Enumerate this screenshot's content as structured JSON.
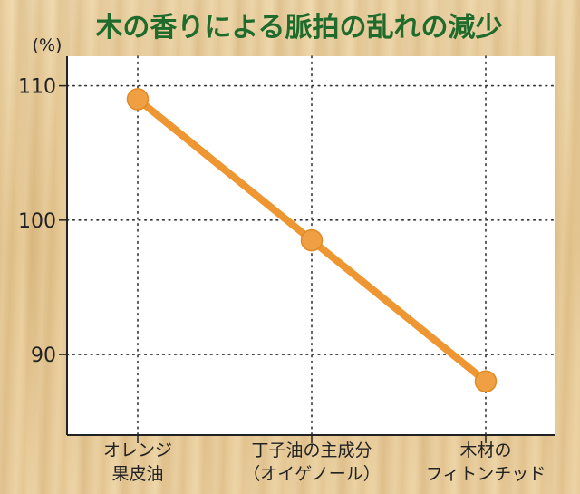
{
  "chart_data": {
    "type": "line",
    "title": "木の香りによる脈拍の乱れの減少",
    "unit_label": "(%)",
    "categories": [
      [
        "オレンジ",
        "果皮油"
      ],
      [
        "丁子油の主成分",
        "（オイゲノール）"
      ],
      [
        "木材の",
        "フィトンチッド"
      ]
    ],
    "series": [
      {
        "values": [
          109,
          98.5,
          88
        ]
      }
    ],
    "y_ticks": [
      90,
      100,
      110
    ],
    "ylim": [
      84,
      112.2
    ],
    "grid": true,
    "colors": {
      "line": "#ee9632",
      "marker": "#f0a042",
      "title": "#1f6b2b",
      "plot_background": "#ffffff"
    }
  }
}
